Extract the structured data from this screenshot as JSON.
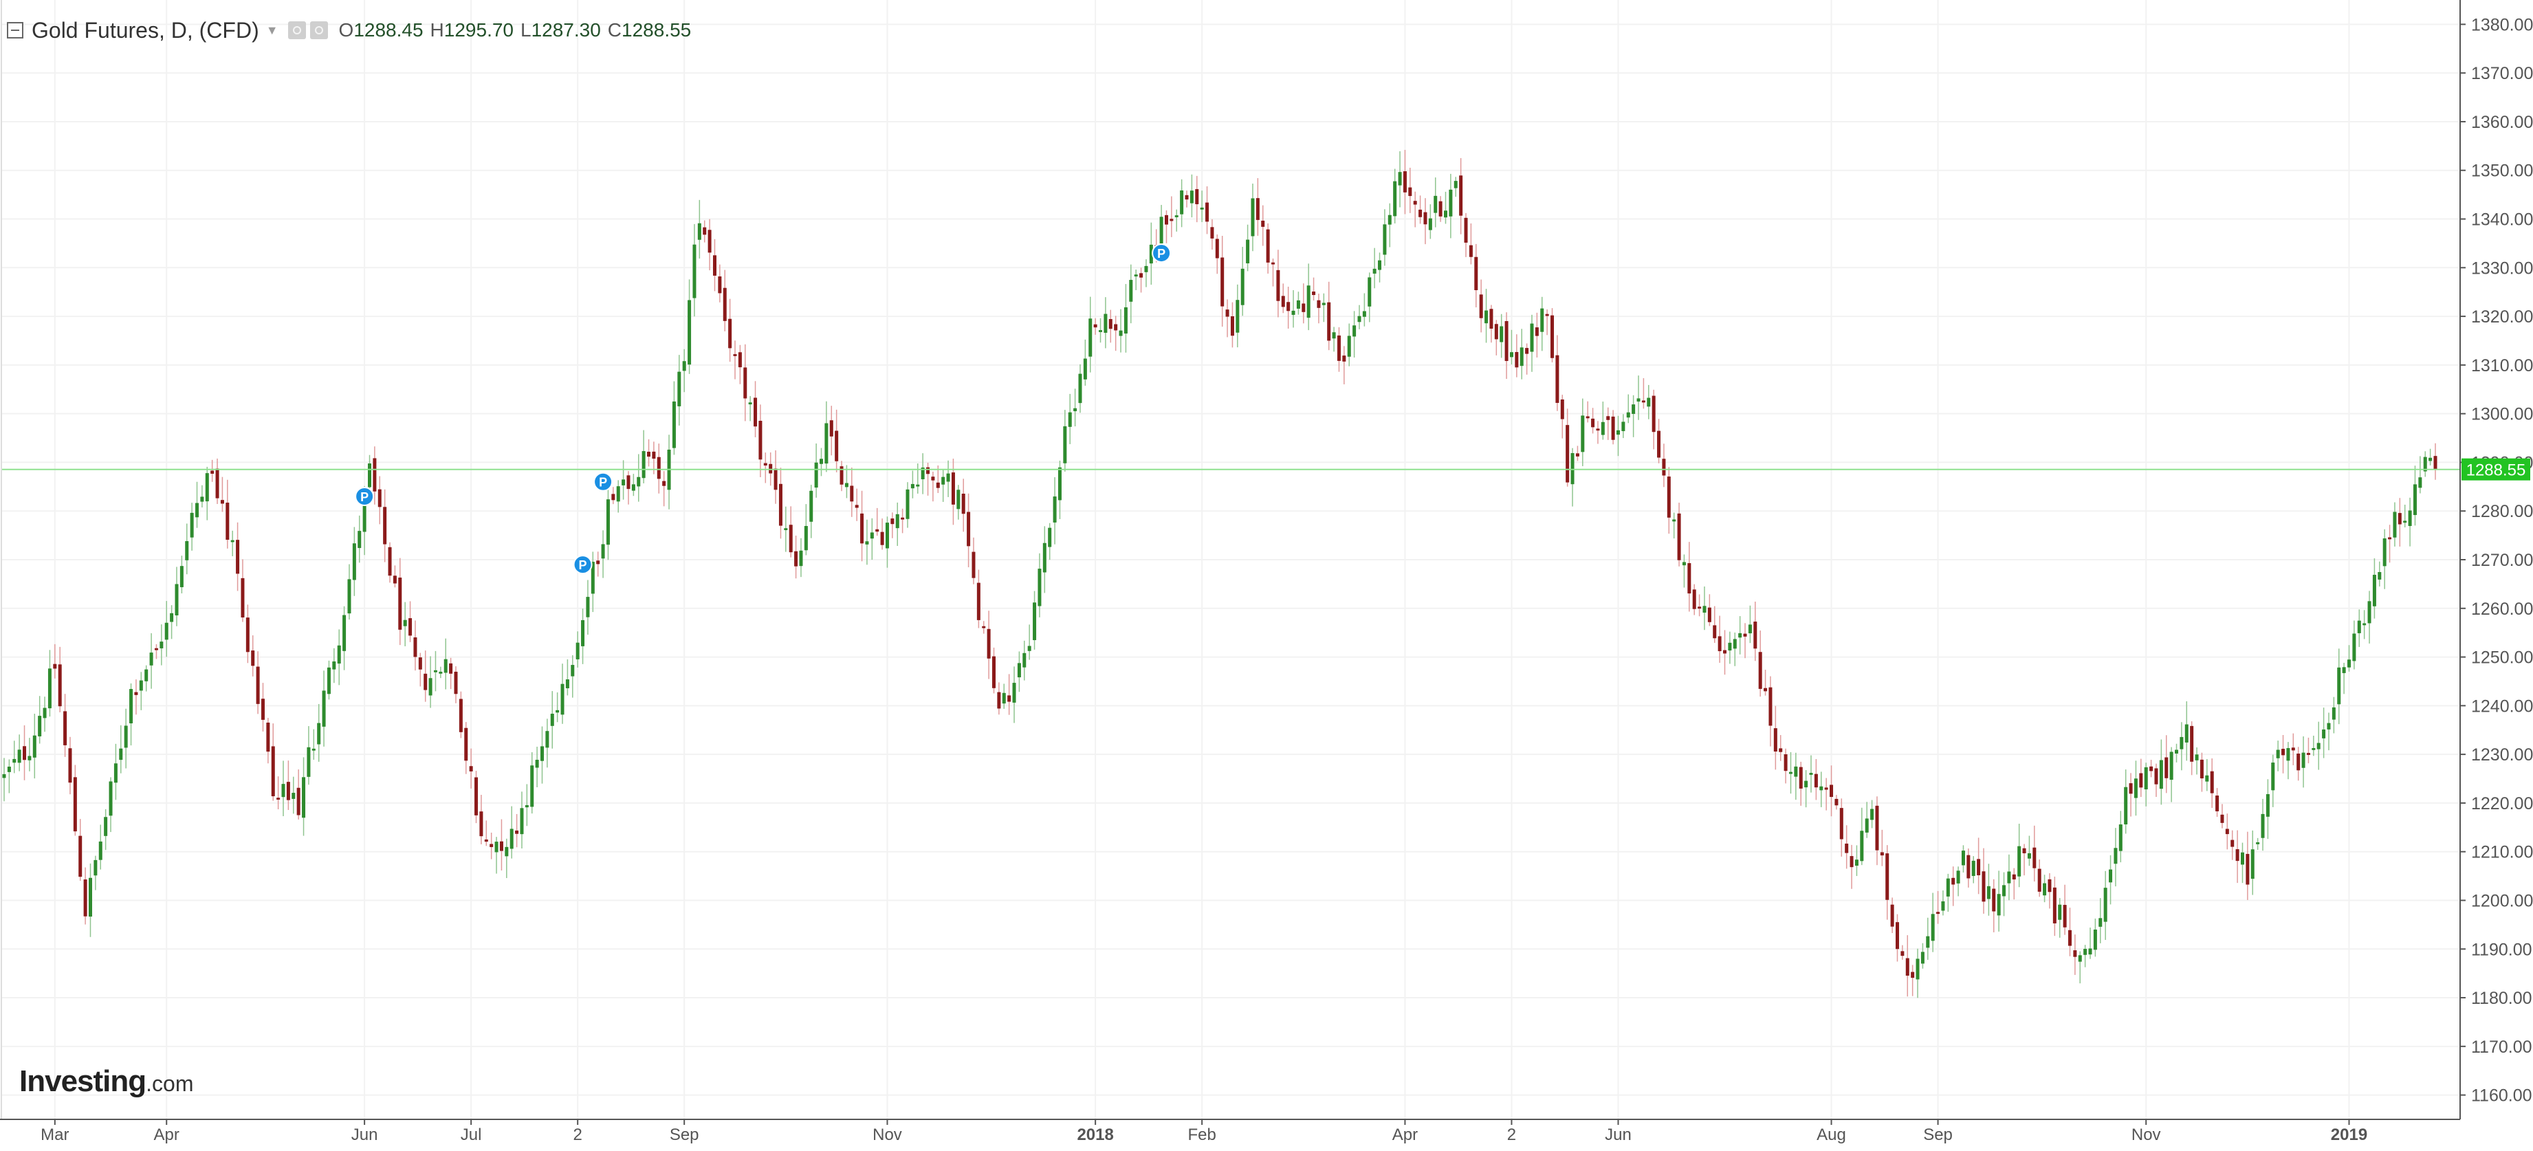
{
  "header": {
    "symbol_title": "Gold Futures, D, (CFD)",
    "open_label": "O",
    "open": "1288.45",
    "high_label": "H",
    "high": "1295.70",
    "low_label": "L",
    "low": "1287.30",
    "close_label": "C",
    "close": "1288.55",
    "icons": [
      "collapse-icon",
      "dropdown-caret-icon",
      "eye-icon",
      "settings-icon"
    ]
  },
  "watermark": {
    "brand": "Investing",
    "suffix": ".com"
  },
  "colors": {
    "up": "#2e8b2e",
    "down": "#8b1a1a",
    "price_line": "#8fe28f",
    "price_tag": "#22c322"
  },
  "chart_data": {
    "type": "candlestick",
    "title": "Gold Futures, D, (CFD)",
    "xlabel": "",
    "ylabel": "",
    "ylim": [
      1155,
      1385
    ],
    "y_ticks": [
      "1160.00",
      "1170.00",
      "1180.00",
      "1190.00",
      "1200.00",
      "1210.00",
      "1220.00",
      "1230.00",
      "1240.00",
      "1250.00",
      "1260.00",
      "1270.00",
      "1280.00",
      "1290.00",
      "1300.00",
      "1310.00",
      "1320.00",
      "1330.00",
      "1340.00",
      "1350.00",
      "1360.00",
      "1370.00",
      "1380.00"
    ],
    "x_ticks": [
      {
        "label": "Mar",
        "i": 10,
        "bold": false
      },
      {
        "label": "Apr",
        "i": 32,
        "bold": false
      },
      {
        "label": "Jun",
        "i": 71,
        "bold": false
      },
      {
        "label": "Jul",
        "i": 92,
        "bold": false
      },
      {
        "label": "2",
        "i": 113,
        "bold": false
      },
      {
        "label": "Sep",
        "i": 134,
        "bold": false
      },
      {
        "label": "Nov",
        "i": 174,
        "bold": false
      },
      {
        "label": "2018",
        "i": 215,
        "bold": true
      },
      {
        "label": "Feb",
        "i": 236,
        "bold": false
      },
      {
        "label": "Apr",
        "i": 276,
        "bold": false
      },
      {
        "label": "2",
        "i": 297,
        "bold": false
      },
      {
        "label": "Jun",
        "i": 318,
        "bold": false
      },
      {
        "label": "Aug",
        "i": 360,
        "bold": false
      },
      {
        "label": "Sep",
        "i": 381,
        "bold": false
      },
      {
        "label": "Nov",
        "i": 422,
        "bold": false
      },
      {
        "label": "2019",
        "i": 462,
        "bold": true
      }
    ],
    "anchors": [
      [
        0,
        1225
      ],
      [
        5,
        1232
      ],
      [
        10,
        1248
      ],
      [
        16,
        1198
      ],
      [
        21,
        1222
      ],
      [
        25,
        1243
      ],
      [
        31,
        1253
      ],
      [
        40,
        1290
      ],
      [
        45,
        1272
      ],
      [
        53,
        1222
      ],
      [
        58,
        1220
      ],
      [
        66,
        1255
      ],
      [
        72,
        1288
      ],
      [
        78,
        1258
      ],
      [
        82,
        1245
      ],
      [
        88,
        1248
      ],
      [
        94,
        1212
      ],
      [
        100,
        1213
      ],
      [
        108,
        1238
      ],
      [
        114,
        1258
      ],
      [
        120,
        1285
      ],
      [
        126,
        1290
      ],
      [
        130,
        1288
      ],
      [
        134,
        1313
      ],
      [
        137,
        1342
      ],
      [
        140,
        1330
      ],
      [
        144,
        1311
      ],
      [
        150,
        1288
      ],
      [
        156,
        1270
      ],
      [
        162,
        1296
      ],
      [
        170,
        1272
      ],
      [
        176,
        1280
      ],
      [
        182,
        1290
      ],
      [
        188,
        1283
      ],
      [
        196,
        1238
      ],
      [
        202,
        1255
      ],
      [
        208,
        1290
      ],
      [
        214,
        1318
      ],
      [
        220,
        1320
      ],
      [
        226,
        1334
      ],
      [
        232,
        1345
      ],
      [
        237,
        1340
      ],
      [
        242,
        1315
      ],
      [
        246,
        1345
      ],
      [
        252,
        1320
      ],
      [
        258,
        1325
      ],
      [
        264,
        1310
      ],
      [
        270,
        1330
      ],
      [
        275,
        1350
      ],
      [
        280,
        1340
      ],
      [
        286,
        1346
      ],
      [
        291,
        1322
      ],
      [
        298,
        1310
      ],
      [
        304,
        1322
      ],
      [
        308,
        1288
      ],
      [
        312,
        1300
      ],
      [
        318,
        1295
      ],
      [
        324,
        1303
      ],
      [
        330,
        1270
      ],
      [
        338,
        1250
      ],
      [
        344,
        1255
      ],
      [
        348,
        1235
      ],
      [
        354,
        1224
      ],
      [
        360,
        1222
      ],
      [
        364,
        1207
      ],
      [
        368,
        1218
      ],
      [
        372,
        1195
      ],
      [
        375,
        1182
      ],
      [
        380,
        1198
      ],
      [
        386,
        1208
      ],
      [
        392,
        1200
      ],
      [
        398,
        1210
      ],
      [
        404,
        1198
      ],
      [
        410,
        1188
      ],
      [
        414,
        1200
      ],
      [
        418,
        1224
      ],
      [
        424,
        1225
      ],
      [
        430,
        1234
      ],
      [
        436,
        1218
      ],
      [
        442,
        1205
      ],
      [
        448,
        1230
      ],
      [
        454,
        1228
      ],
      [
        460,
        1245
      ],
      [
        466,
        1262
      ],
      [
        470,
        1276
      ],
      [
        474,
        1282
      ],
      [
        477,
        1289
      ],
      [
        479,
        1288.55
      ]
    ],
    "markers": [
      {
        "label": "P",
        "i": 71,
        "price": 1283
      },
      {
        "label": "P",
        "i": 118,
        "price": 1286
      },
      {
        "label": "P",
        "i": 114,
        "price": 1269
      },
      {
        "label": "P",
        "i": 228,
        "price": 1333
      }
    ],
    "last_close": 1288.55,
    "last_close_label": "1288.55"
  }
}
